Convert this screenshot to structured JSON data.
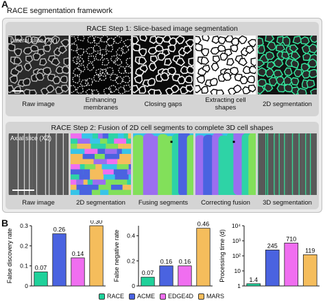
{
  "panel_a": {
    "letter": "A",
    "title": "RACE segmentation framework",
    "step1": {
      "header": "RACE Step 1: Slice-based image segmentation",
      "slice_label": "Lateral slice (XY)",
      "captions": [
        "Raw image",
        "Enhancing membranes",
        "Closing gaps",
        "Extracting cell shapes",
        "2D segmentation"
      ]
    },
    "step2": {
      "header": "RACE Step 2: Fusion of 2D cell segments to complete 3D cell shapes",
      "slice_label": "Axial slice (XZ)",
      "captions": [
        "Raw image",
        "2D segmentation",
        "Fusing segments",
        "Correcting fusion",
        "3D segmentation"
      ]
    }
  },
  "panel_b": {
    "letter": "B",
    "colors": {
      "RACE": "#1fd19a",
      "ACME": "#4a63e0",
      "EDGE4D": "#f06ef0",
      "MARS": "#f5bd5c"
    },
    "legend": [
      "RACE",
      "ACME",
      "EDGE4D",
      "MARS"
    ]
  },
  "chart_data": [
    {
      "type": "bar",
      "categories": [
        "RACE",
        "ACME",
        "EDGE4D",
        "MARS"
      ],
      "values": [
        0.07,
        0.26,
        0.14,
        0.3
      ],
      "value_labels": [
        "0.07",
        "0.26",
        "0.14",
        "0.30"
      ],
      "ylabel": "False discovery rate",
      "ylim": [
        0,
        0.3
      ],
      "yticks": [
        "0",
        "0.1",
        "0.2",
        "0.3"
      ],
      "scale": "linear",
      "grid": false
    },
    {
      "type": "bar",
      "categories": [
        "RACE",
        "ACME",
        "EDGE4D",
        "MARS"
      ],
      "values": [
        0.07,
        0.16,
        0.16,
        0.46
      ],
      "value_labels": [
        "0.07",
        "0.16",
        "0.16",
        "0.46"
      ],
      "ylabel": "False negative rate",
      "ylim": [
        0,
        0.48
      ],
      "yticks": [
        "0",
        "0.2",
        "0.4"
      ],
      "scale": "linear",
      "grid": false
    },
    {
      "type": "bar",
      "categories": [
        "RACE",
        "ACME",
        "EDGE4D",
        "MARS"
      ],
      "values": [
        1.4,
        245,
        710,
        119
      ],
      "value_labels": [
        "1.4",
        "245",
        "710",
        "119"
      ],
      "ylabel": "Processing time (d)",
      "ylim": [
        1,
        10000
      ],
      "yticks": [
        "1",
        "10",
        "10²",
        "10³",
        "10⁴"
      ],
      "scale": "log",
      "grid": false
    }
  ]
}
